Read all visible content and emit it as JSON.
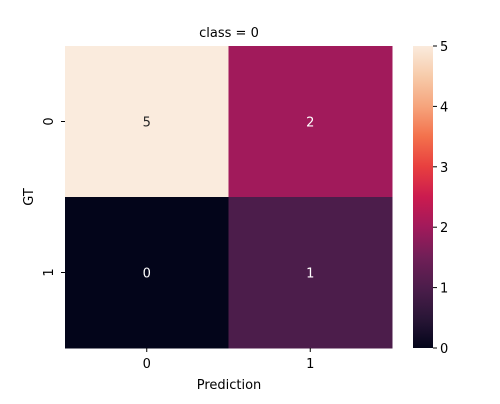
{
  "chart_data": {
    "type": "heatmap",
    "title": "class = 0",
    "xlabel": "Prediction",
    "ylabel": "GT",
    "x_categories": [
      "0",
      "1"
    ],
    "y_categories": [
      "0",
      "1"
    ],
    "values": [
      [
        5,
        2
      ],
      [
        0,
        1
      ]
    ],
    "colorbar": {
      "min": 0,
      "max": 5,
      "ticks": [
        "0",
        "1",
        "2",
        "3",
        "4",
        "5"
      ]
    },
    "colormap_stops": [
      {
        "t": 0.0,
        "color": "#03051a"
      },
      {
        "t": 0.1,
        "color": "#2a1637"
      },
      {
        "t": 0.2,
        "color": "#4c1d4b"
      },
      {
        "t": 0.3,
        "color": "#701f57"
      },
      {
        "t": 0.4,
        "color": "#a11a5b"
      },
      {
        "t": 0.5,
        "color": "#cb1b4f"
      },
      {
        "t": 0.6,
        "color": "#e83f3f"
      },
      {
        "t": 0.7,
        "color": "#f3714c"
      },
      {
        "t": 0.8,
        "color": "#f6a47c"
      },
      {
        "t": 0.9,
        "color": "#f7cbaa"
      },
      {
        "t": 1.0,
        "color": "#faebdd"
      }
    ]
  }
}
